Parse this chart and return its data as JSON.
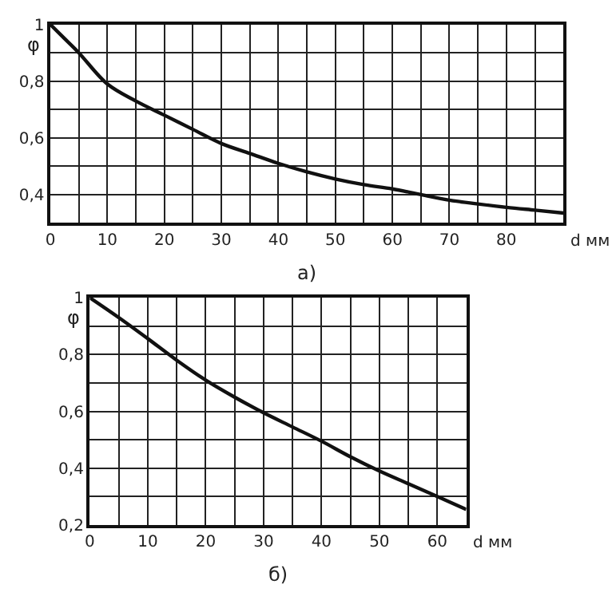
{
  "chart_data": [
    {
      "type": "line",
      "title": "а)",
      "xlabel": "d мм",
      "ylabel": "φ",
      "color": "#111111",
      "grid": true,
      "marker": "none",
      "line_style": "solid",
      "x": [
        0,
        2.5,
        5,
        10,
        15,
        20,
        25,
        30,
        35,
        40,
        45,
        50,
        55,
        60,
        65,
        70,
        75,
        80,
        85,
        90
      ],
      "values": [
        1.0,
        0.95,
        0.9,
        0.79,
        0.73,
        0.68,
        0.63,
        0.58,
        0.545,
        0.51,
        0.48,
        0.455,
        0.435,
        0.42,
        0.4,
        0.38,
        0.367,
        0.355,
        0.345,
        0.335
      ],
      "xlim": [
        0,
        90
      ],
      "ylim": [
        0.3,
        1.0
      ],
      "xticks": [
        0,
        {
          "value": 5,
          "label": null
        },
        10,
        {
          "value": 15,
          "label": null
        },
        20,
        {
          "value": 25,
          "label": null
        },
        30,
        {
          "value": 35,
          "label": null
        },
        40,
        {
          "value": 45,
          "label": null
        },
        50,
        {
          "value": 55,
          "label": null
        },
        60,
        {
          "value": 65,
          "label": null
        },
        70,
        {
          "value": 75,
          "label": null
        },
        80,
        {
          "value": 85,
          "label": null
        },
        {
          "value": 90,
          "label": null
        }
      ],
      "yticks": [
        {
          "value": 0.3,
          "label": null
        },
        {
          "value": 0.4,
          "label": "0,4"
        },
        {
          "value": 0.5,
          "label": null
        },
        {
          "value": 0.6,
          "label": "0,6"
        },
        {
          "value": 0.7,
          "label": null
        },
        {
          "value": 0.8,
          "label": "0,8"
        },
        {
          "value": 0.9,
          "label": null
        },
        {
          "value": 1.0,
          "label": "1"
        }
      ]
    },
    {
      "type": "line",
      "title": "б)",
      "xlabel": "d мм",
      "ylabel": "φ",
      "color": "#111111",
      "grid": true,
      "marker": "none",
      "line_style": "solid",
      "x": [
        0,
        5,
        10,
        15,
        20,
        25,
        30,
        35,
        40,
        45,
        50,
        55,
        60,
        65
      ],
      "values": [
        1.0,
        0.93,
        0.856,
        0.78,
        0.71,
        0.65,
        0.595,
        0.545,
        0.495,
        0.44,
        0.39,
        0.345,
        0.3,
        0.255
      ],
      "xlim": [
        0,
        65
      ],
      "ylim": [
        0.2,
        1.0
      ],
      "xticks": [
        0,
        {
          "value": 5,
          "label": null
        },
        10,
        {
          "value": 15,
          "label": null
        },
        20,
        {
          "value": 25,
          "label": null
        },
        30,
        {
          "value": 35,
          "label": null
        },
        40,
        {
          "value": 45,
          "label": null
        },
        50,
        {
          "value": 55,
          "label": null
        },
        60,
        {
          "value": 65,
          "label": null
        }
      ],
      "yticks": [
        {
          "value": 0.2,
          "label": "0,2"
        },
        {
          "value": 0.3,
          "label": null
        },
        {
          "value": 0.4,
          "label": "0,4"
        },
        {
          "value": 0.5,
          "label": null
        },
        {
          "value": 0.6,
          "label": "0,6"
        },
        {
          "value": 0.7,
          "label": null
        },
        {
          "value": 0.8,
          "label": "0,8"
        },
        {
          "value": 0.9,
          "label": null
        },
        {
          "value": 1.0,
          "label": "1"
        }
      ]
    }
  ]
}
